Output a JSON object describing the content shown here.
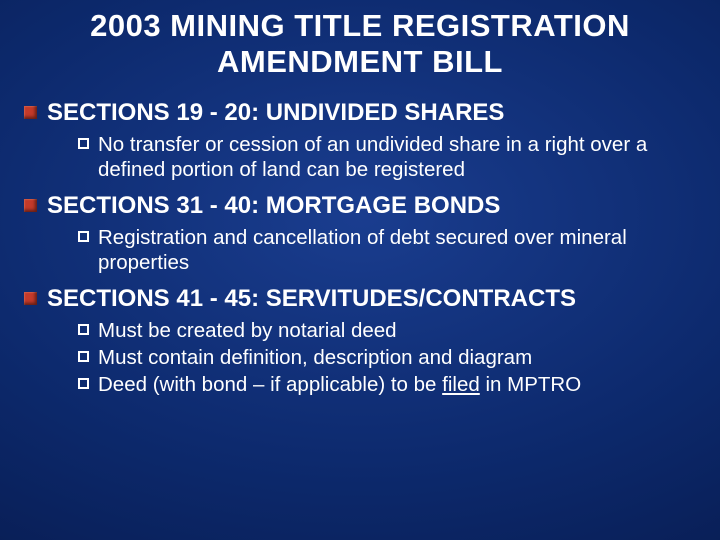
{
  "slide": {
    "background_gradient": {
      "type": "radial",
      "stops": [
        "#1a3d8f",
        "#0d2a6e",
        "#051543"
      ]
    },
    "text_color": "#ffffff",
    "title_line1": "2003 MINING TITLE REGISTRATION",
    "title_line2": "AMENDMENT BILL",
    "title_fontsize": 31,
    "title_weight": 900,
    "sections": [
      {
        "heading": "SECTIONS 19 - 20:  UNDIVIDED SHARES",
        "heading_fontsize": 24,
        "bullet_color": "#c43a2a",
        "items": [
          {
            "text": "No transfer or cession of an undivided share in a right over a defined portion of land can be registered"
          }
        ]
      },
      {
        "heading": "SECTIONS 31 - 40:  MORTGAGE BONDS",
        "heading_fontsize": 24,
        "bullet_color": "#c43a2a",
        "items": [
          {
            "text": "Registration and cancellation of debt secured over mineral properties"
          }
        ]
      },
      {
        "heading": "SECTIONS 41 - 45:  SERVITUDES/CONTRACTS",
        "heading_fontsize": 24,
        "bullet_color": "#c43a2a",
        "items": [
          {
            "text": "Must be created by notarial deed"
          },
          {
            "text": "Must contain definition, description and diagram"
          },
          {
            "prefix": "Deed (with bond – if applicable) to be ",
            "underlined": "filed",
            "suffix": " in MPTRO"
          }
        ]
      }
    ],
    "sub_bullet_border_color": "#ffffff",
    "sub_bullet_size": 11,
    "sub_fontsize": 20.5
  }
}
